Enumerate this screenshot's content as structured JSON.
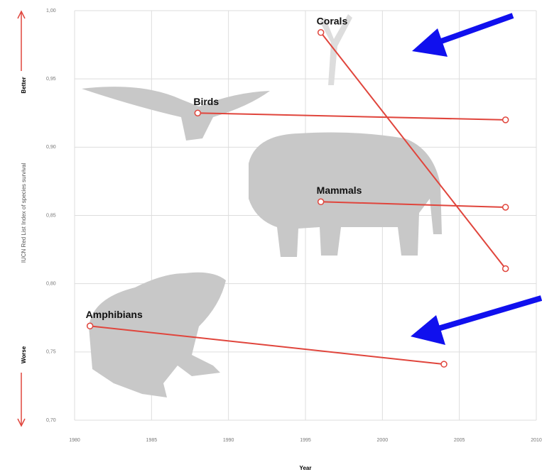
{
  "chart_data": {
    "type": "line",
    "xlabel": "Year",
    "ylabel": "IUCN Red List Index of species survival",
    "ylabel_top": "Better",
    "ylabel_bottom": "Worse",
    "xlim": [
      1980,
      2010
    ],
    "xticks": [
      1980,
      1985,
      1990,
      1995,
      2000,
      2005,
      2010
    ],
    "ylim": [
      0.7,
      1.0
    ],
    "yticks": [
      {
        "value": 0.7,
        "label": "0,70"
      },
      {
        "value": 0.75,
        "label": "0,75"
      },
      {
        "value": 0.8,
        "label": "0,80"
      },
      {
        "value": 0.85,
        "label": "0,85"
      },
      {
        "value": 0.9,
        "label": "0,90"
      },
      {
        "value": 0.95,
        "label": "0,95"
      },
      {
        "value": 1.0,
        "label": "1,00"
      }
    ],
    "grid": true,
    "series": [
      {
        "name": "Corals",
        "color": "#e0453c",
        "x": [
          1996,
          2008
        ],
        "values": [
          0.984,
          0.811
        ]
      },
      {
        "name": "Birds",
        "color": "#e0453c",
        "x": [
          1988,
          2008
        ],
        "values": [
          0.925,
          0.92
        ]
      },
      {
        "name": "Mammals",
        "color": "#e0453c",
        "x": [
          1996,
          2008
        ],
        "values": [
          0.86,
          0.856
        ]
      },
      {
        "name": "Amphibians",
        "color": "#e0453c",
        "x": [
          1981,
          2004
        ],
        "values": [
          0.769,
          0.741
        ]
      }
    ]
  }
}
